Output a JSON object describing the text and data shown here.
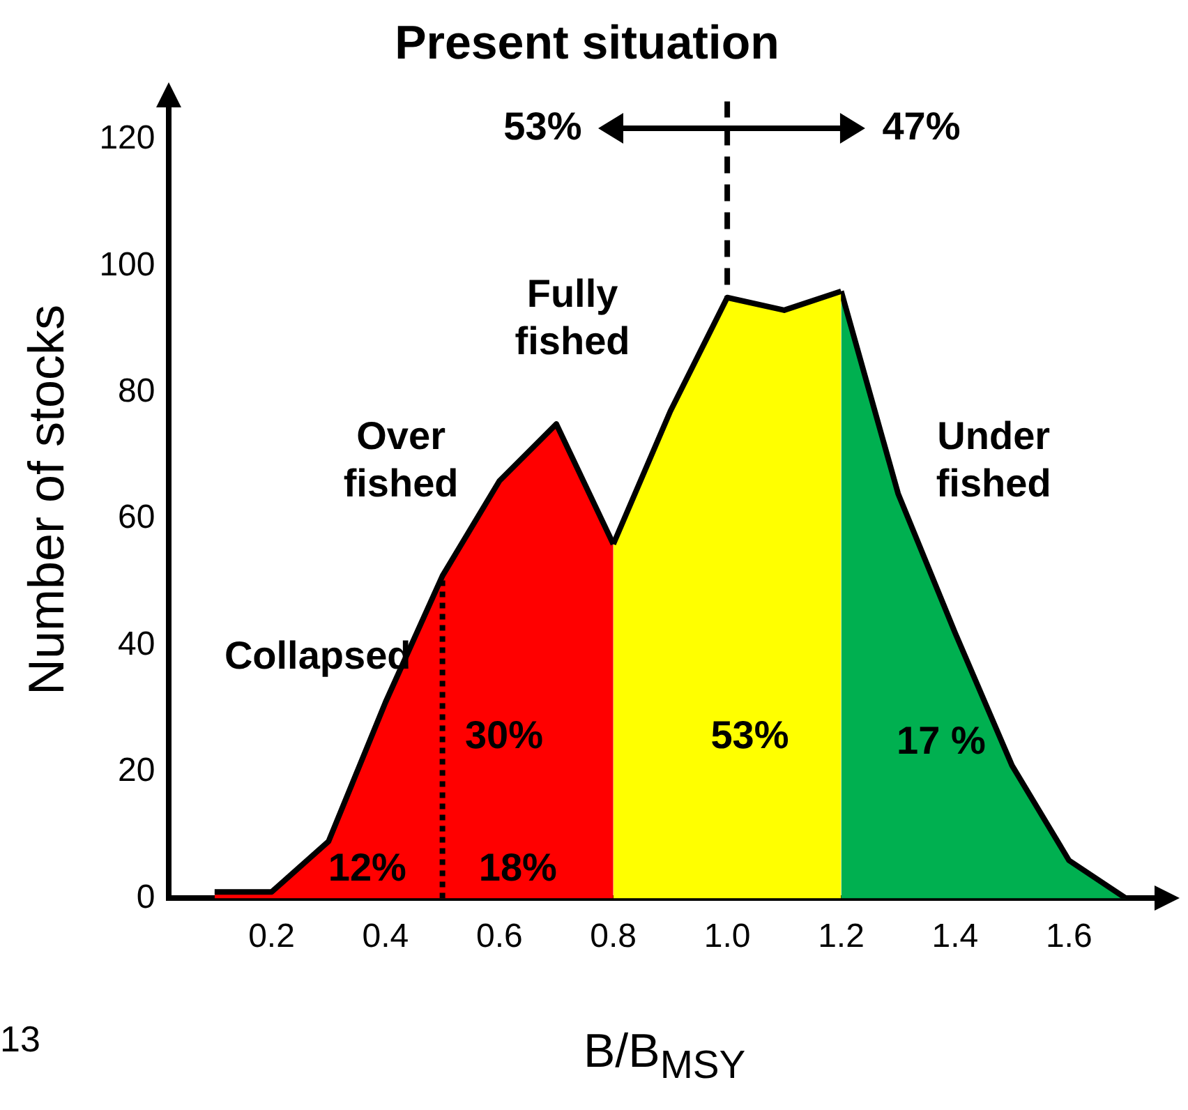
{
  "chart_data": {
    "type": "area",
    "title": "Present situation",
    "xlabel": "B/B$_{MSY}$",
    "ylabel": "Number of stocks",
    "series": [
      {
        "color": "#ff0000",
        "x": [
          0.1,
          0.2,
          0.3,
          0.4,
          0.5,
          0.6,
          0.7,
          0.8
        ],
        "values": [
          1,
          1,
          9,
          31,
          51,
          66,
          75,
          56
        ]
      },
      {
        "color": "#ffff00",
        "x": [
          0.8,
          0.9,
          1.0,
          1.1,
          1.2
        ],
        "values": [
          56,
          77,
          95,
          93,
          96
        ]
      },
      {
        "color": "#00b050",
        "x": [
          1.2,
          1.3,
          1.4,
          1.5,
          1.6,
          1.7
        ],
        "values": [
          96,
          64,
          42,
          21,
          6,
          0
        ]
      },
      {
        "type": "line",
        "color": "#000000",
        "line_style": "dotted",
        "x": [
          0.5,
          0.5
        ],
        "values": [
          0,
          51
        ]
      }
    ],
    "xlim": [
      0.02,
      1.76
    ],
    "ylim": [
      0,
      126
    ],
    "xticks": [
      0.2,
      0.4,
      0.6,
      0.8,
      {
        "value": 1,
        "label": "1.0"
      },
      1.2,
      1.4,
      1.6
    ],
    "yticks": [
      0,
      20,
      40,
      60,
      80,
      100,
      120
    ],
    "ref_lines": [
      {
        "axis": "x",
        "value": 1,
        "color": "#000000",
        "line_style": "dashed"
      }
    ],
    "annotations": [
      "53%",
      "47%",
      "Collapsed",
      "Over\nfished",
      "Fully\nfished",
      "Under\nfished",
      "30%",
      "53%",
      "17 %",
      "12%",
      "18%",
      "13"
    ],
    "grid": false,
    "legend": false
  }
}
